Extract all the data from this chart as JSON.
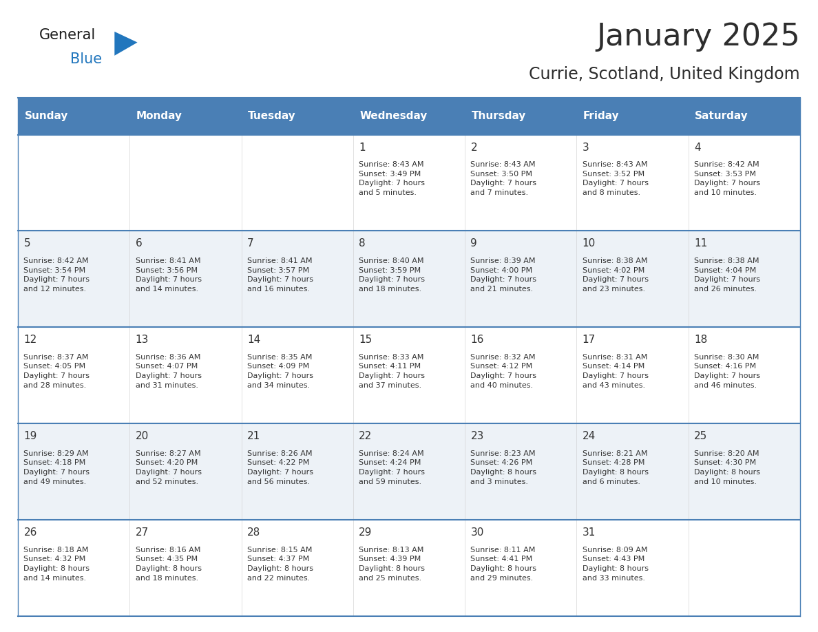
{
  "title": "January 2025",
  "subtitle": "Currie, Scotland, United Kingdom",
  "title_color": "#2d2d2d",
  "subtitle_color": "#2d2d2d",
  "header_bg_color": "#4a7fb5",
  "header_text_color": "#ffffff",
  "row_bg_color_1": "#ffffff",
  "row_bg_color_2": "#edf2f7",
  "separator_color": "#4a7fb5",
  "day_number_color": "#333333",
  "cell_text_color": "#333333",
  "days_of_week": [
    "Sunday",
    "Monday",
    "Tuesday",
    "Wednesday",
    "Thursday",
    "Friday",
    "Saturday"
  ],
  "calendar": [
    [
      {
        "day": "",
        "info": ""
      },
      {
        "day": "",
        "info": ""
      },
      {
        "day": "",
        "info": ""
      },
      {
        "day": "1",
        "info": "Sunrise: 8:43 AM\nSunset: 3:49 PM\nDaylight: 7 hours\nand 5 minutes."
      },
      {
        "day": "2",
        "info": "Sunrise: 8:43 AM\nSunset: 3:50 PM\nDaylight: 7 hours\nand 7 minutes."
      },
      {
        "day": "3",
        "info": "Sunrise: 8:43 AM\nSunset: 3:52 PM\nDaylight: 7 hours\nand 8 minutes."
      },
      {
        "day": "4",
        "info": "Sunrise: 8:42 AM\nSunset: 3:53 PM\nDaylight: 7 hours\nand 10 minutes."
      }
    ],
    [
      {
        "day": "5",
        "info": "Sunrise: 8:42 AM\nSunset: 3:54 PM\nDaylight: 7 hours\nand 12 minutes."
      },
      {
        "day": "6",
        "info": "Sunrise: 8:41 AM\nSunset: 3:56 PM\nDaylight: 7 hours\nand 14 minutes."
      },
      {
        "day": "7",
        "info": "Sunrise: 8:41 AM\nSunset: 3:57 PM\nDaylight: 7 hours\nand 16 minutes."
      },
      {
        "day": "8",
        "info": "Sunrise: 8:40 AM\nSunset: 3:59 PM\nDaylight: 7 hours\nand 18 minutes."
      },
      {
        "day": "9",
        "info": "Sunrise: 8:39 AM\nSunset: 4:00 PM\nDaylight: 7 hours\nand 21 minutes."
      },
      {
        "day": "10",
        "info": "Sunrise: 8:38 AM\nSunset: 4:02 PM\nDaylight: 7 hours\nand 23 minutes."
      },
      {
        "day": "11",
        "info": "Sunrise: 8:38 AM\nSunset: 4:04 PM\nDaylight: 7 hours\nand 26 minutes."
      }
    ],
    [
      {
        "day": "12",
        "info": "Sunrise: 8:37 AM\nSunset: 4:05 PM\nDaylight: 7 hours\nand 28 minutes."
      },
      {
        "day": "13",
        "info": "Sunrise: 8:36 AM\nSunset: 4:07 PM\nDaylight: 7 hours\nand 31 minutes."
      },
      {
        "day": "14",
        "info": "Sunrise: 8:35 AM\nSunset: 4:09 PM\nDaylight: 7 hours\nand 34 minutes."
      },
      {
        "day": "15",
        "info": "Sunrise: 8:33 AM\nSunset: 4:11 PM\nDaylight: 7 hours\nand 37 minutes."
      },
      {
        "day": "16",
        "info": "Sunrise: 8:32 AM\nSunset: 4:12 PM\nDaylight: 7 hours\nand 40 minutes."
      },
      {
        "day": "17",
        "info": "Sunrise: 8:31 AM\nSunset: 4:14 PM\nDaylight: 7 hours\nand 43 minutes."
      },
      {
        "day": "18",
        "info": "Sunrise: 8:30 AM\nSunset: 4:16 PM\nDaylight: 7 hours\nand 46 minutes."
      }
    ],
    [
      {
        "day": "19",
        "info": "Sunrise: 8:29 AM\nSunset: 4:18 PM\nDaylight: 7 hours\nand 49 minutes."
      },
      {
        "day": "20",
        "info": "Sunrise: 8:27 AM\nSunset: 4:20 PM\nDaylight: 7 hours\nand 52 minutes."
      },
      {
        "day": "21",
        "info": "Sunrise: 8:26 AM\nSunset: 4:22 PM\nDaylight: 7 hours\nand 56 minutes."
      },
      {
        "day": "22",
        "info": "Sunrise: 8:24 AM\nSunset: 4:24 PM\nDaylight: 7 hours\nand 59 minutes."
      },
      {
        "day": "23",
        "info": "Sunrise: 8:23 AM\nSunset: 4:26 PM\nDaylight: 8 hours\nand 3 minutes."
      },
      {
        "day": "24",
        "info": "Sunrise: 8:21 AM\nSunset: 4:28 PM\nDaylight: 8 hours\nand 6 minutes."
      },
      {
        "day": "25",
        "info": "Sunrise: 8:20 AM\nSunset: 4:30 PM\nDaylight: 8 hours\nand 10 minutes."
      }
    ],
    [
      {
        "day": "26",
        "info": "Sunrise: 8:18 AM\nSunset: 4:32 PM\nDaylight: 8 hours\nand 14 minutes."
      },
      {
        "day": "27",
        "info": "Sunrise: 8:16 AM\nSunset: 4:35 PM\nDaylight: 8 hours\nand 18 minutes."
      },
      {
        "day": "28",
        "info": "Sunrise: 8:15 AM\nSunset: 4:37 PM\nDaylight: 8 hours\nand 22 minutes."
      },
      {
        "day": "29",
        "info": "Sunrise: 8:13 AM\nSunset: 4:39 PM\nDaylight: 8 hours\nand 25 minutes."
      },
      {
        "day": "30",
        "info": "Sunrise: 8:11 AM\nSunset: 4:41 PM\nDaylight: 8 hours\nand 29 minutes."
      },
      {
        "day": "31",
        "info": "Sunrise: 8:09 AM\nSunset: 4:43 PM\nDaylight: 8 hours\nand 33 minutes."
      },
      {
        "day": "",
        "info": ""
      }
    ]
  ],
  "logo_general_color": "#1a1a1a",
  "logo_blue_color": "#2176bd",
  "logo_triangle_color": "#2176bd",
  "title_fontsize": 32,
  "subtitle_fontsize": 17,
  "header_fontsize": 11,
  "day_num_fontsize": 11,
  "cell_text_fontsize": 8
}
